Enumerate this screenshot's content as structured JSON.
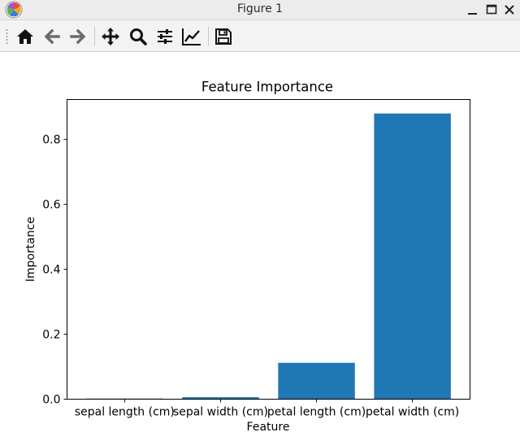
{
  "window": {
    "title": "Figure 1",
    "controls": [
      "minimize-icon",
      "maximize-icon",
      "close-icon"
    ]
  },
  "toolbar": {
    "buttons": [
      {
        "name": "home",
        "icon": "home-icon"
      },
      {
        "name": "back",
        "icon": "arrow-left-icon"
      },
      {
        "name": "forward",
        "icon": "arrow-right-icon"
      },
      {
        "name": "pan",
        "icon": "move-icon"
      },
      {
        "name": "zoom",
        "icon": "magnifier-icon"
      },
      {
        "name": "configure-subplots",
        "icon": "sliders-icon"
      },
      {
        "name": "edit-axis",
        "icon": "line-chart-icon"
      },
      {
        "name": "save",
        "icon": "floppy-disk-icon"
      }
    ]
  },
  "chart_data": {
    "type": "bar",
    "title": "Feature Importance",
    "xlabel": "Feature",
    "ylabel": "Importance",
    "categories": [
      "sepal length (cm)",
      "sepal width (cm)",
      "petal length (cm)",
      "petal width (cm)"
    ],
    "values": [
      0.002,
      0.006,
      0.112,
      0.88
    ],
    "ylim": [
      0,
      0.9231
    ],
    "yticks": [
      0.0,
      0.2,
      0.4,
      0.6,
      0.8
    ],
    "ytick_labels": [
      "0.0",
      "0.2",
      "0.4",
      "0.6",
      "0.8"
    ],
    "bar_color": "#1f77b4",
    "grid": false,
    "legend": "none"
  }
}
